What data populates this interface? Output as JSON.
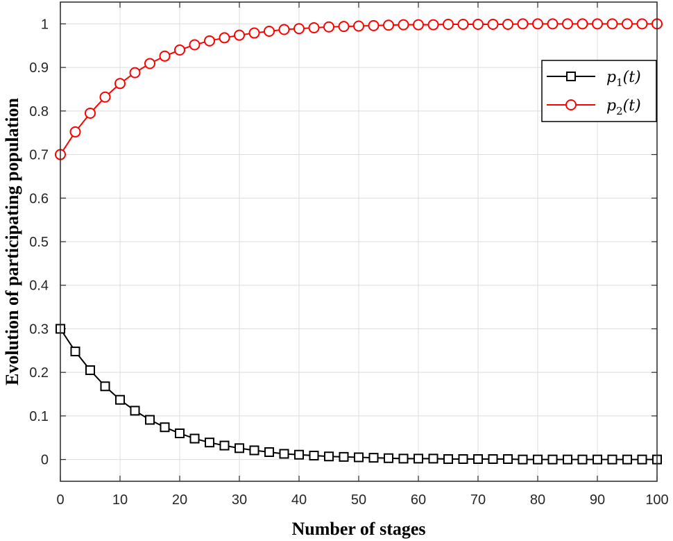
{
  "chart_data": {
    "type": "line",
    "title": "",
    "xlabel": "Number of stages",
    "ylabel": "Evolution of participating population",
    "xlim": [
      0,
      100
    ],
    "ylim": [
      -0.05,
      1.05
    ],
    "xticks": [
      0,
      10,
      20,
      30,
      40,
      50,
      60,
      70,
      80,
      90,
      100
    ],
    "yticks": [
      0,
      0.1,
      0.2,
      0.3,
      0.4,
      0.5,
      0.6,
      0.7,
      0.8,
      0.9,
      1
    ],
    "xtick_labels": [
      "0",
      "10",
      "20",
      "30",
      "40",
      "50",
      "60",
      "70",
      "80",
      "90",
      "100"
    ],
    "ytick_labels": [
      "0",
      "0.1",
      "0.2",
      "0.3",
      "0.4",
      "0.5",
      "0.6",
      "0.7",
      "0.8",
      "0.9",
      "1"
    ],
    "grid": true,
    "legend_position": "top-right",
    "x": [
      0,
      2.5,
      5,
      7.5,
      10,
      12.5,
      15,
      17.5,
      20,
      22.5,
      25,
      27.5,
      30,
      32.5,
      35,
      37.5,
      40,
      42.5,
      45,
      47.5,
      50,
      52.5,
      55,
      57.5,
      60,
      62.5,
      65,
      67.5,
      70,
      72.5,
      75,
      77.5,
      80,
      82.5,
      85,
      87.5,
      90,
      92.5,
      95,
      97.5,
      100
    ],
    "series": [
      {
        "name": "p1(t)",
        "legend_main": "p",
        "legend_sub": "1",
        "legend_tail": "(t)",
        "color": "#000000",
        "marker": "square",
        "values": [
          0.3,
          0.248,
          0.205,
          0.168,
          0.137,
          0.112,
          0.091,
          0.074,
          0.06,
          0.048,
          0.039,
          0.032,
          0.026,
          0.021,
          0.017,
          0.013,
          0.011,
          0.009,
          0.007,
          0.006,
          0.005,
          0.004,
          0.003,
          0.002,
          0.002,
          0.002,
          0.001,
          0.001,
          0.001,
          0.001,
          0.001,
          0.0,
          0.0,
          0.0,
          0.0,
          0.0,
          0.0,
          0.0,
          0.0,
          0.0,
          0.0
        ]
      },
      {
        "name": "p2(t)",
        "legend_main": "p",
        "legend_sub": "2",
        "legend_tail": "(t)",
        "color": "#ff0000",
        "marker": "circle",
        "values": [
          0.7,
          0.752,
          0.795,
          0.832,
          0.863,
          0.888,
          0.909,
          0.926,
          0.94,
          0.952,
          0.961,
          0.968,
          0.974,
          0.979,
          0.983,
          0.987,
          0.989,
          0.991,
          0.993,
          0.994,
          0.995,
          0.996,
          0.997,
          0.998,
          0.998,
          0.998,
          0.999,
          0.999,
          0.999,
          0.999,
          0.999,
          1.0,
          1.0,
          1.0,
          1.0,
          1.0,
          1.0,
          1.0,
          1.0,
          1.0,
          1.0
        ]
      }
    ]
  }
}
